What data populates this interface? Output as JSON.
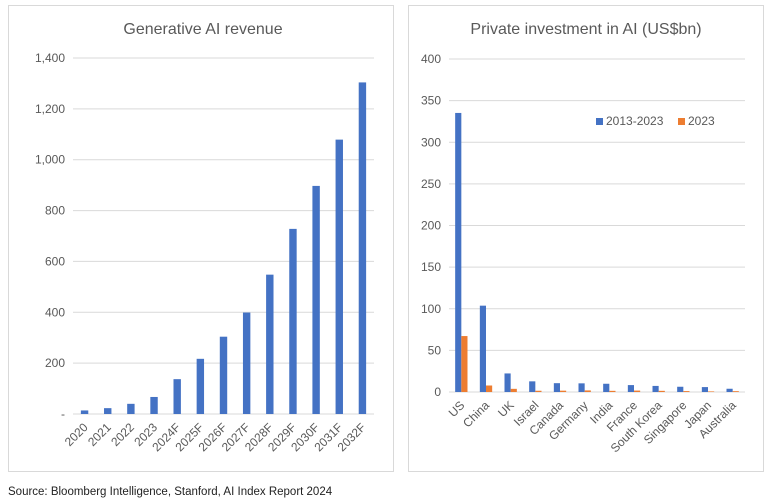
{
  "colors": {
    "series1": "#4472c4",
    "series2": "#ed7d31",
    "grid": "#d9d9d9"
  },
  "source": "Source: Bloomberg Intelligence, Stanford, AI Index Report 2024",
  "chart_data": [
    {
      "type": "bar",
      "title": "Generative AI revenue",
      "xlabel": "",
      "ylabel": "",
      "ylim": [
        0,
        1400
      ],
      "yticks": [
        0,
        200,
        400,
        600,
        800,
        1000,
        1200,
        1400
      ],
      "ytick_labels": [
        "-",
        "200",
        "400",
        "600",
        "800",
        "1,000",
        "1,200",
        "1,400"
      ],
      "grid": true,
      "categories": [
        "2020",
        "2021",
        "2022",
        "2023",
        "2024F",
        "2025F",
        "2026F",
        "2027F",
        "2028F",
        "2029F",
        "2030F",
        "2031F",
        "2032F"
      ],
      "values": [
        14,
        23,
        40,
        67,
        137,
        217,
        304,
        399,
        548,
        728,
        897,
        1079,
        1304
      ]
    },
    {
      "type": "bar",
      "title": "Private investment in AI (US$bn)",
      "xlabel": "",
      "ylabel": "",
      "ylim": [
        0,
        400
      ],
      "yticks": [
        0,
        50,
        100,
        150,
        200,
        250,
        300,
        350,
        400
      ],
      "ytick_labels": [
        "0",
        "50",
        "100",
        "150",
        "200",
        "250",
        "300",
        "350",
        "400"
      ],
      "grid": true,
      "legend": "top-right",
      "categories": [
        "US",
        "China",
        "UK",
        "Israel",
        "Canada",
        "Germany",
        "India",
        "France",
        "South Korea",
        "Singapore",
        "Japan",
        "Australia"
      ],
      "series": [
        {
          "name": "2013-2023",
          "values": [
            335.2,
            103.7,
            22.3,
            12.8,
            10.6,
            10.4,
            9.9,
            8.3,
            7.3,
            6.3,
            5.9,
            3.9
          ]
        },
        {
          "name": "2023",
          "values": [
            67.2,
            7.8,
            3.8,
            1.5,
            1.6,
            1.9,
            1.4,
            1.7,
            1.4,
            1.1,
            0.7,
            1.0
          ]
        }
      ]
    }
  ]
}
